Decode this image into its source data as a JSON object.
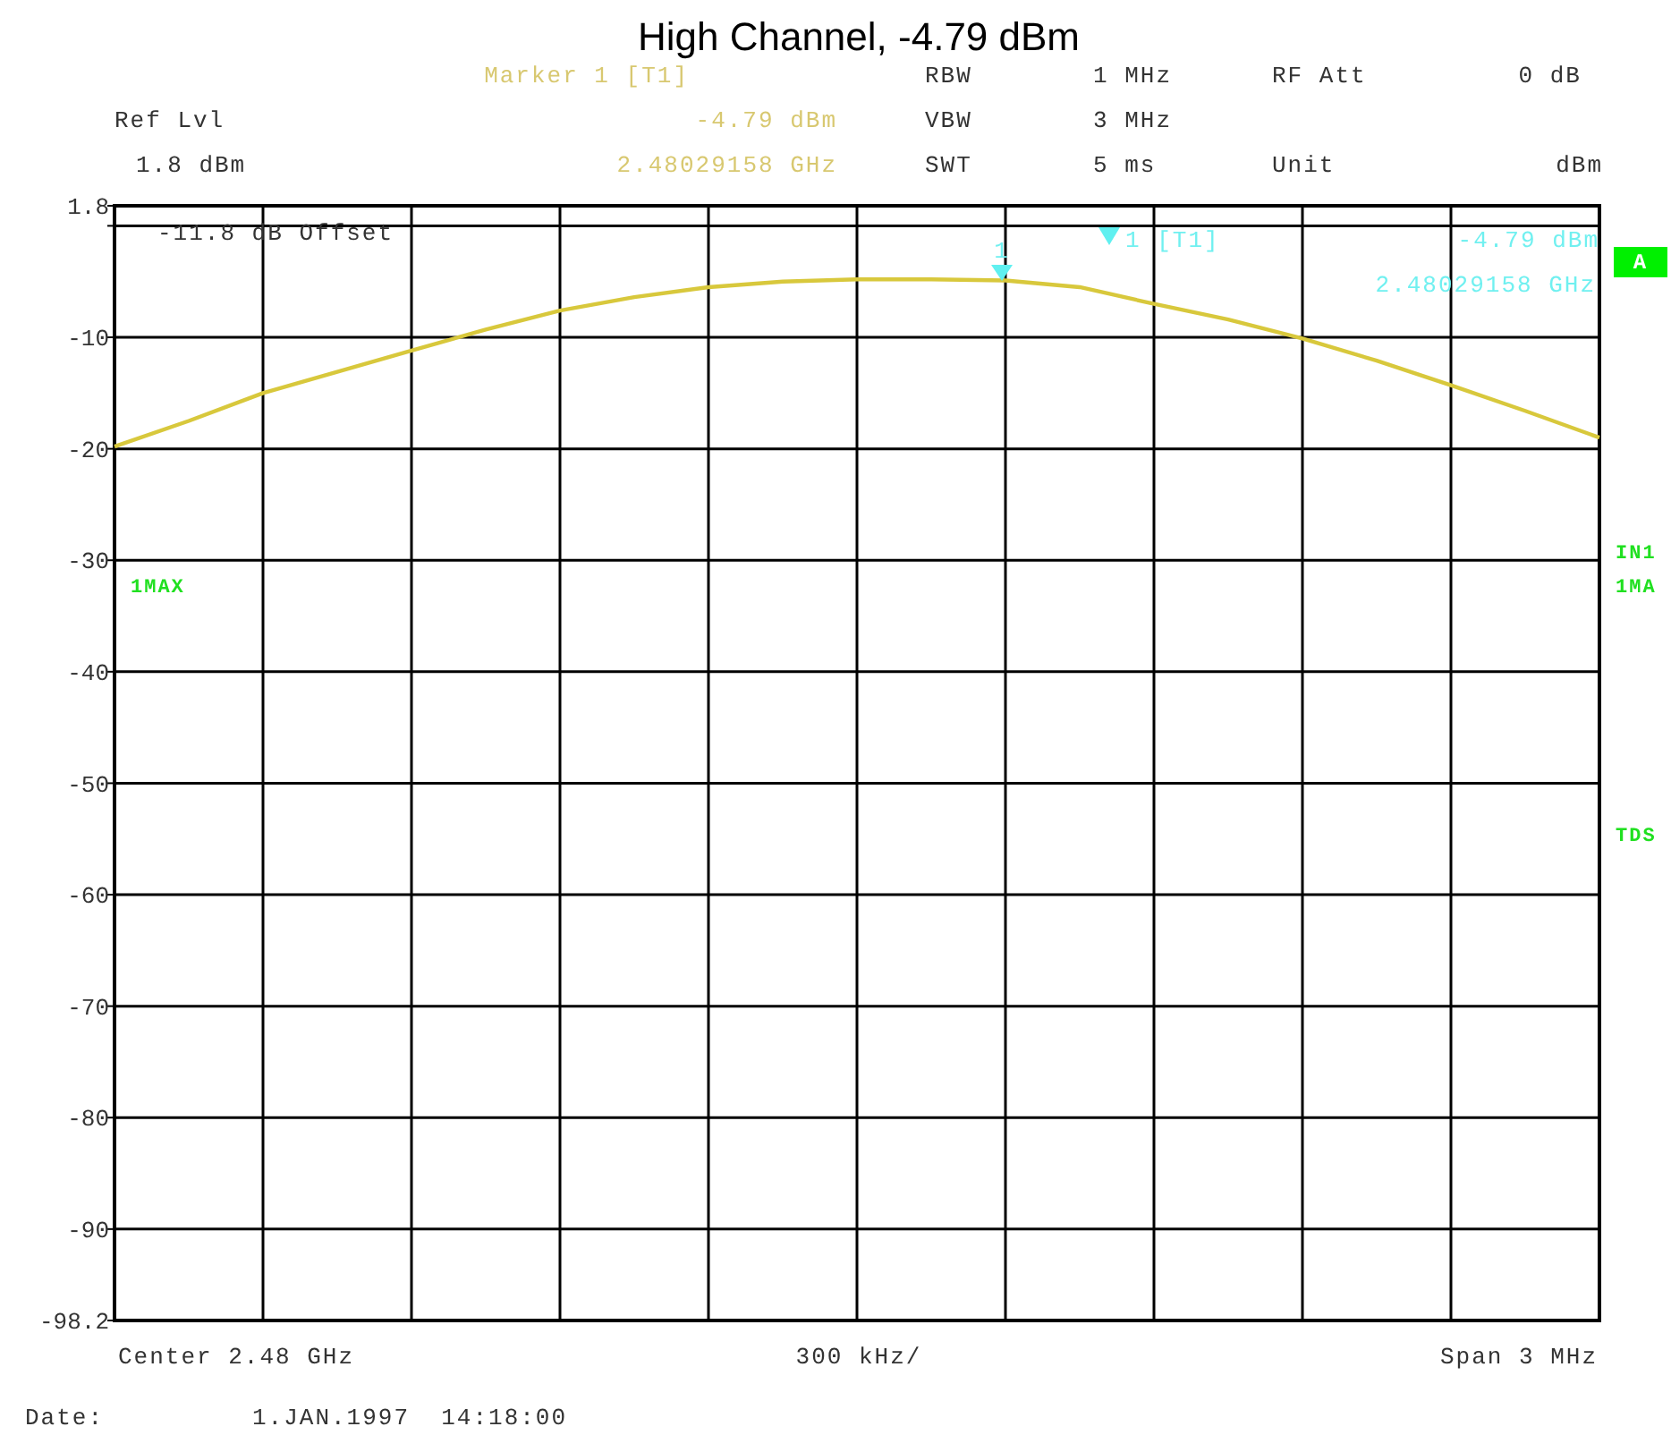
{
  "chart_data": {
    "type": "line",
    "title": "High Channel, -4.79 dBm",
    "categories": [
      null,
      null,
      null,
      null,
      null,
      null,
      null,
      null,
      null,
      null,
      null,
      null,
      null,
      null,
      null,
      null,
      null,
      null,
      null,
      null,
      null
    ],
    "series": [
      {
        "color": "#d8c83c",
        "values": [
          -19.8,
          -17.5,
          -15.0,
          -13.1,
          -11.2,
          -9.3,
          -7.6,
          -6.4,
          -5.5,
          -5.0,
          -4.8,
          -4.8,
          -4.9,
          -5.5,
          -7.0,
          -8.4,
          -10.1,
          -12.1,
          -14.3,
          -16.6,
          -19.0
        ]
      }
    ],
    "ylim": [
      -98.2,
      1.8
    ],
    "yticks": [
      1.8,
      {
        "value": 0,
        "label": null
      },
      -10,
      -20,
      -30,
      -40,
      -50,
      -60,
      -70,
      -80,
      -90,
      -98.2
    ],
    "grid": true,
    "marker": "none",
    "line_style": "solid",
    "annotations": [
      "Marker 1 [T1]",
      "-4.79 dBm",
      "2.48029158 GHz",
      "RBW",
      "1 MHz",
      "VBW",
      "3 MHz",
      "SWT",
      "5 ms",
      "RF Att",
      "0 dB",
      "Unit",
      "dBm",
      "Ref Lvl",
      "1.8 dBm",
      "-11.8 dB Offset",
      "1 [T1]",
      "-4.79 dBm",
      "2.48029158 GHz",
      "A",
      "1MAX",
      "IN1",
      "1MA",
      "TDS",
      "Center 2.48 GHz",
      "300 kHz/",
      "Span 3 MHz",
      "Date:",
      "1.JAN.1997  14:18:00",
      "1"
    ]
  }
}
